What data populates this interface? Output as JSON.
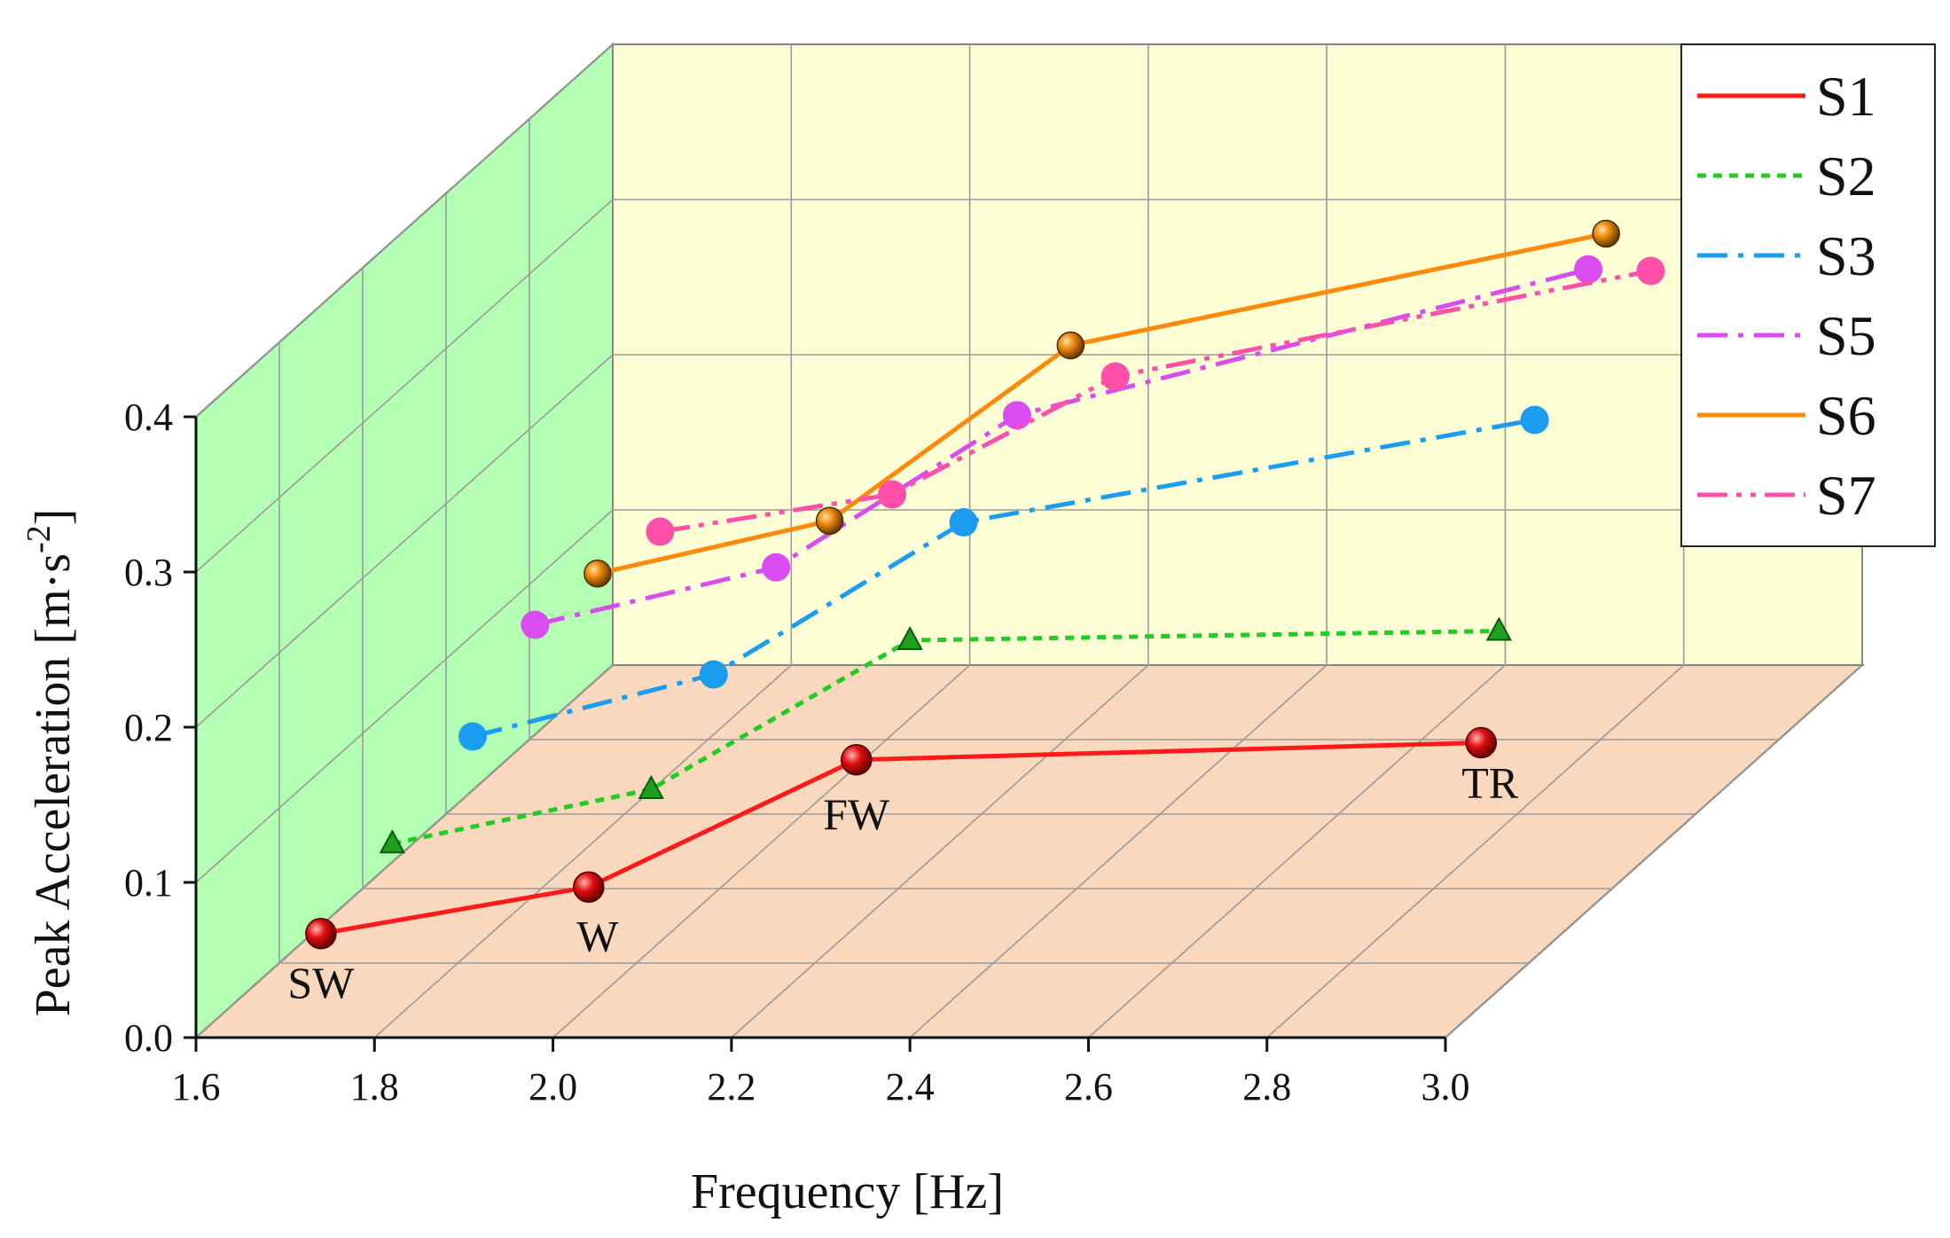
{
  "chart_data": {
    "type": "line",
    "xlabel": "Frequency [Hz]",
    "ylabel_main": "Peak Acceleration [m·s",
    "ylabel_sup": "-2",
    "ylabel_close": "]",
    "xlim": [
      1.6,
      3.0
    ],
    "ylim": [
      0.0,
      0.4
    ],
    "x_ticks": [
      "1.6",
      "1.8",
      "2.0",
      "2.2",
      "2.4",
      "2.6",
      "2.8",
      "3.0"
    ],
    "y_ticks": [
      "0.0",
      "0.1",
      "0.2",
      "0.3",
      "0.4"
    ],
    "grid": true,
    "legend_position": "top-right",
    "gait_labels": [
      "SW",
      "W",
      "FW",
      "TR"
    ],
    "series": [
      {
        "name": "S1",
        "color": "#ff1a1a",
        "dash": "solid",
        "marker": "sphere-red",
        "x": [
          1.74,
          2.04,
          2.34,
          3.04
        ],
        "y": [
          0.067,
          0.097,
          0.179,
          0.19
        ]
      },
      {
        "name": "S2",
        "color": "#22cc22",
        "dash": "dot",
        "marker": "triangle-green",
        "x": [
          1.82,
          2.11,
          2.4,
          3.06
        ],
        "y": [
          0.125,
          0.16,
          0.256,
          0.262
        ]
      },
      {
        "name": "S3",
        "color": "#1a9cf0",
        "dash": "dashdot",
        "marker": "circle-blue",
        "x": [
          1.91,
          2.18,
          2.46,
          3.1
        ],
        "y": [
          0.194,
          0.234,
          0.332,
          0.398
        ]
      },
      {
        "name": "S5",
        "color": "#d94df0",
        "dash": "dashdot",
        "marker": "circle-violet",
        "x": [
          1.98,
          2.25,
          2.52,
          3.16
        ],
        "y": [
          0.266,
          0.303,
          0.401,
          0.495
        ]
      },
      {
        "name": "S6",
        "color": "#ff8a0a",
        "dash": "solid",
        "marker": "sphere-orange",
        "x": [
          2.05,
          2.31,
          2.58,
          3.18
        ],
        "y": [
          0.299,
          0.333,
          0.446,
          0.518
        ]
      },
      {
        "name": "S7",
        "color": "#ff4fa8",
        "dash": "dashdotdot",
        "marker": "circle-pink",
        "x": [
          2.12,
          2.38,
          2.63,
          3.23
        ],
        "y": [
          0.326,
          0.35,
          0.426,
          0.494
        ]
      }
    ],
    "wall_colors": {
      "back": "#ffffd6",
      "side": "#b3ffb3",
      "floor": "#f9d8be"
    }
  }
}
